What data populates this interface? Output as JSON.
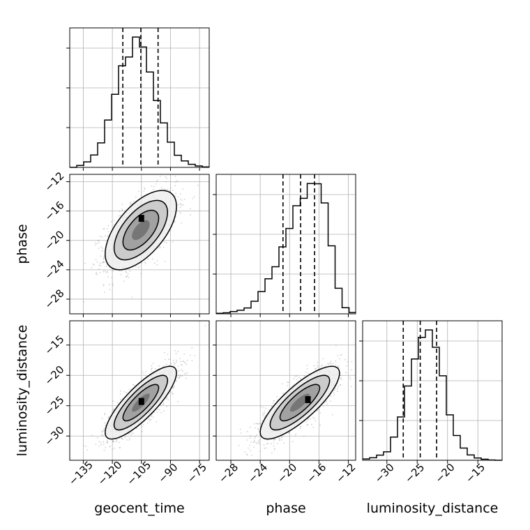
{
  "chart_data": {
    "type": "corner",
    "parameters": [
      "geocent_time",
      "phase",
      "luminosity_distance"
    ],
    "axis_labels": {
      "x": [
        "geocent_time",
        "phase",
        "luminosity_distance"
      ],
      "y": [
        "phase",
        "luminosity_distance"
      ]
    },
    "ranges": {
      "geocent_time": [
        -142,
        -70
      ],
      "phase": [
        -30,
        -11
      ],
      "luminosity_distance": [
        -34,
        -11
      ]
    },
    "ticks": {
      "geocent_time": [
        -135,
        -120,
        -105,
        -90,
        -75
      ],
      "phase": [
        -28,
        -24,
        -20,
        -16,
        -12
      ],
      "luminosity_distance": [
        -30,
        -25,
        -20,
        -15
      ]
    },
    "tick_labels": {
      "geocent_time": [
        "−135",
        "−120",
        "−105",
        "−90",
        "−75"
      ],
      "phase": [
        "−28",
        "−24",
        "−20",
        "−16",
        "−12"
      ],
      "luminosity_distance": [
        "−30",
        "−25",
        "−20",
        "−15"
      ]
    },
    "histograms": {
      "geocent_time": {
        "bin_edges": [
          -142,
          -138.4,
          -134.8,
          -131.2,
          -127.6,
          -124,
          -120.4,
          -116.8,
          -113.2,
          -109.6,
          -106,
          -102.4,
          -98.8,
          -95.2,
          -91.6,
          -88,
          -84.4,
          -80.8,
          -77.2,
          -73.6,
          -70
        ],
        "counts": [
          0,
          8,
          23,
          52,
          103,
          199,
          307,
          427,
          464,
          548,
          506,
          401,
          281,
          187,
          106,
          51,
          27,
          13,
          6,
          2
        ],
        "quantiles": [
          -114.6,
          -105.3,
          -96.4
        ]
      },
      "phase": {
        "bin_edges": [
          -30,
          -29.05,
          -28.1,
          -27.15,
          -26.2,
          -25.25,
          -24.3,
          -23.35,
          -22.4,
          -21.45,
          -20.5,
          -19.55,
          -18.55,
          -17.6,
          -16.65,
          -15.7,
          -14.75,
          -13.8,
          -12.85,
          -11.9,
          -11
        ],
        "counts": [
          2,
          4,
          9,
          14,
          23,
          49,
          87,
          137,
          184,
          262,
          334,
          423,
          452,
          510,
          509,
          434,
          266,
          100,
          24,
          5
        ],
        "quantiles": [
          -20.9,
          -18.5,
          -16.6
        ]
      },
      "luminosity_distance": {
        "bin_edges": [
          -34,
          -32.85,
          -31.7,
          -30.55,
          -29.4,
          -28.25,
          -27.1,
          -25.95,
          -24.8,
          -23.65,
          -22.5,
          -21.35,
          -20.2,
          -19.05,
          -17.9,
          -16.75,
          -15.6,
          -14.45,
          -13.3,
          -12.15,
          -11
        ],
        "counts": [
          5,
          10,
          20,
          33,
          91,
          170,
          291,
          397,
          482,
          511,
          443,
          331,
          178,
          97,
          48,
          21,
          9,
          4,
          1,
          0
        ],
        "quantiles": [
          -27.3,
          -24.5,
          -21.8
        ]
      }
    },
    "pairs": [
      {
        "x": "geocent_time",
        "y": "phase",
        "x_mean": -105.3,
        "y_mean": -18.6,
        "x_sd": 9.2,
        "y_sd": 2.7,
        "correlation": 0.6,
        "mode": [
          -105,
          -17
        ]
      },
      {
        "x": "geocent_time",
        "y": "luminosity_distance",
        "x_mean": -105.3,
        "y_mean": -24.5,
        "x_sd": 9.2,
        "y_sd": 3.0,
        "correlation": 0.82,
        "mode": [
          -105,
          -24.3
        ]
      },
      {
        "x": "phase",
        "y": "luminosity_distance",
        "x_mean": -18.6,
        "y_mean": -24.5,
        "x_sd": 2.7,
        "y_sd": 3.0,
        "correlation": 0.81,
        "mode": [
          -17.5,
          -24
        ]
      }
    ],
    "contour_levels_sigma": [
      0.5,
      1.0,
      1.5,
      2.0
    ],
    "grid": true,
    "colors": {
      "line": "#000000",
      "grid": "#b0b0b0",
      "scatter": "#9a9a9a",
      "background": "#ffffff"
    }
  }
}
